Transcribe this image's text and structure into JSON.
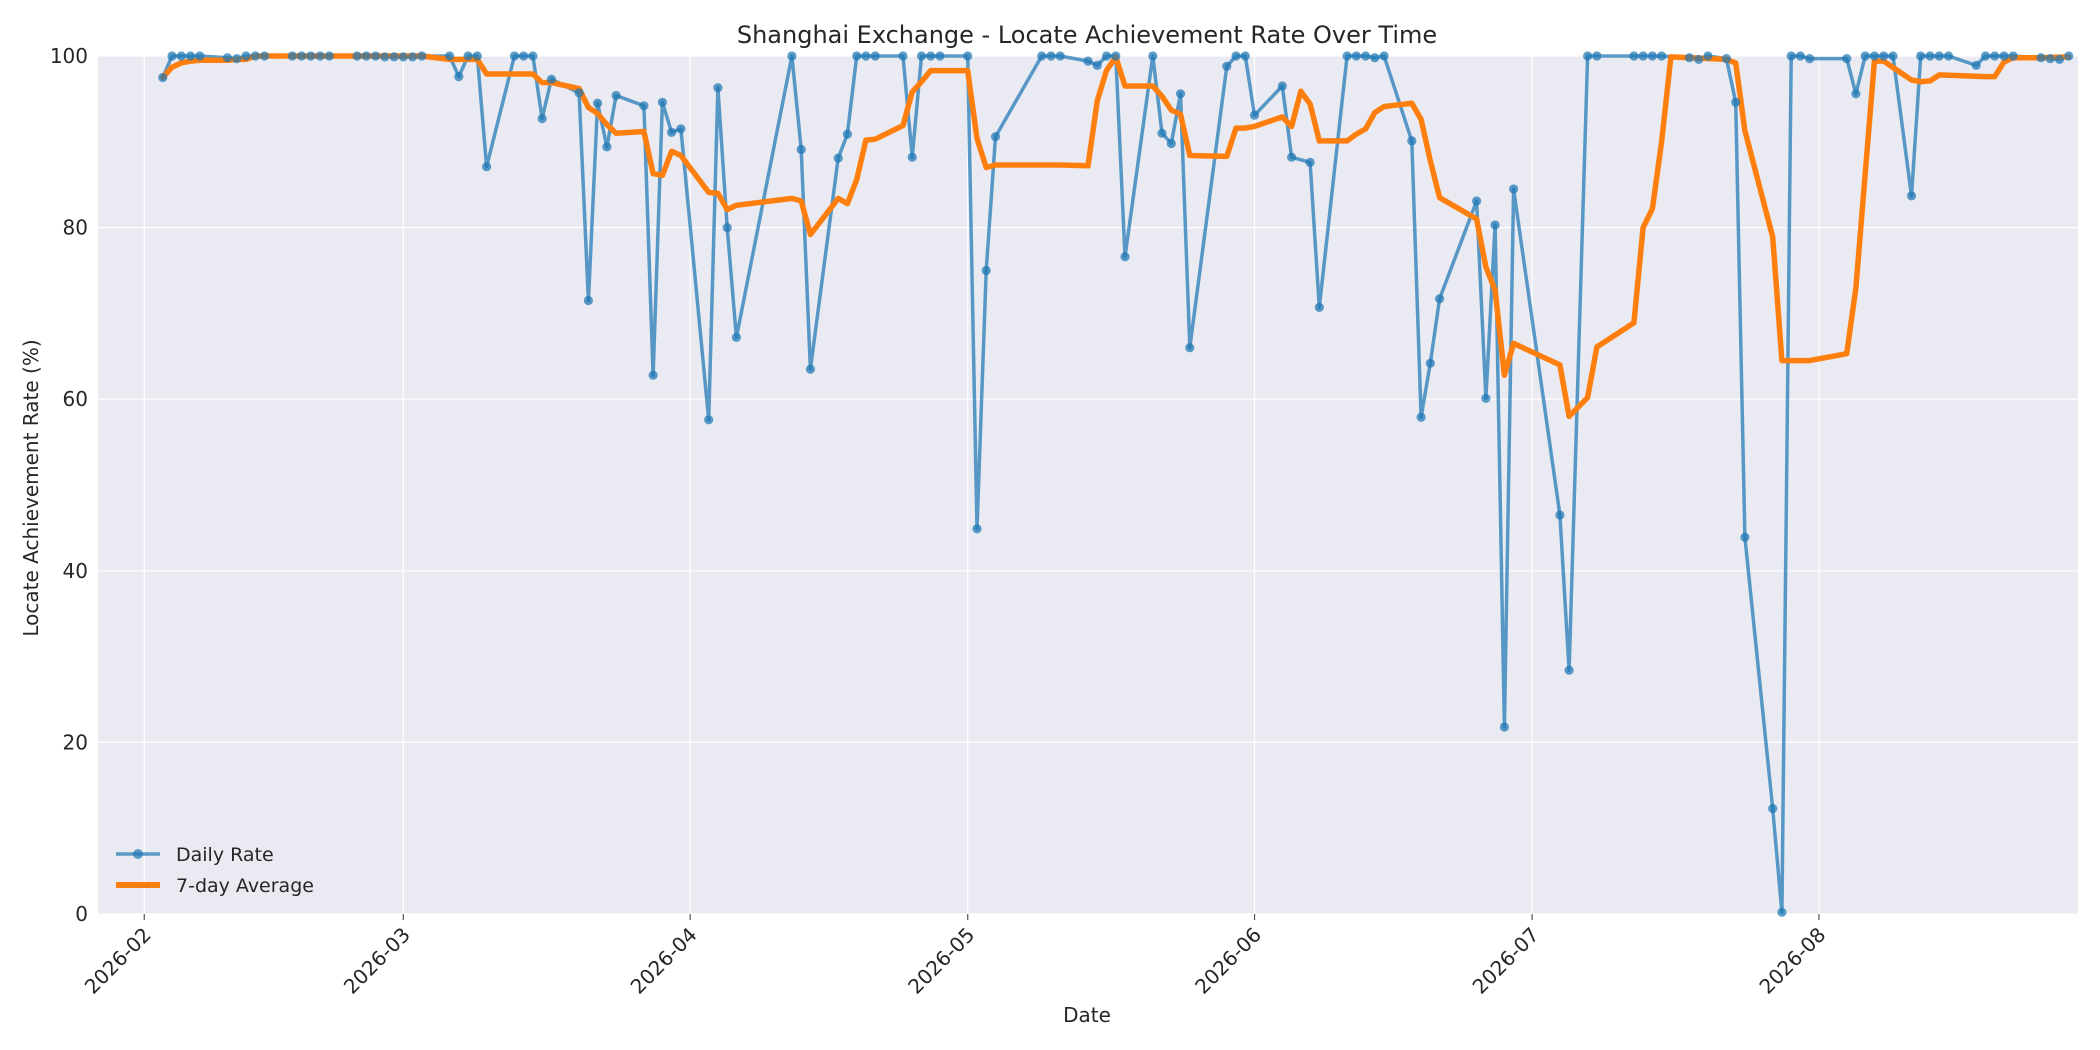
{
  "chart_data": {
    "type": "line",
    "title": "Shanghai Exchange - Locate Achievement Rate Over Time",
    "xlabel": "Date",
    "ylabel": "Locate Achievement Rate (%)",
    "ylim": [
      0,
      100
    ],
    "xlim": [
      "2026-01-27",
      "2026-08-29"
    ],
    "x_ticks": [
      "2026-02",
      "2026-03",
      "2026-04",
      "2026-05",
      "2026-06",
      "2026-07",
      "2026-08"
    ],
    "x_tick_dates": [
      "2026-02-01",
      "2026-03-01",
      "2026-04-01",
      "2026-05-01",
      "2026-06-01",
      "2026-07-01",
      "2026-08-01"
    ],
    "y_ticks": [
      0,
      20,
      40,
      60,
      80,
      100
    ],
    "grid": true,
    "legend_position": "lower-left",
    "colors": {
      "daily": "#1f77b4",
      "average": "#ff7f0e",
      "plot_bg": "#eaeaf2",
      "grid": "#ffffff"
    },
    "series": [
      {
        "name": "Daily Rate",
        "style": "line-with-markers",
        "points": [
          [
            "2026-02-03",
            97.5
          ],
          [
            "2026-02-04",
            100
          ],
          [
            "2026-02-05",
            100
          ],
          [
            "2026-02-06",
            100
          ],
          [
            "2026-02-07",
            100
          ],
          [
            "2026-02-10",
            99.8
          ],
          [
            "2026-02-11",
            99.7
          ],
          [
            "2026-02-12",
            100
          ],
          [
            "2026-02-13",
            100
          ],
          [
            "2026-02-14",
            100
          ],
          [
            "2026-02-17",
            100
          ],
          [
            "2026-02-18",
            100
          ],
          [
            "2026-02-19",
            100
          ],
          [
            "2026-02-20",
            100
          ],
          [
            "2026-02-21",
            100
          ],
          [
            "2026-02-24",
            100
          ],
          [
            "2026-02-25",
            100
          ],
          [
            "2026-02-26",
            100
          ],
          [
            "2026-02-27",
            99.9
          ],
          [
            "2026-02-28",
            99.9
          ],
          [
            "2026-03-01",
            99.9
          ],
          [
            "2026-03-02",
            99.9
          ],
          [
            "2026-03-03",
            100
          ],
          [
            "2026-03-06",
            100
          ],
          [
            "2026-03-07",
            97.6
          ],
          [
            "2026-03-08",
            100
          ],
          [
            "2026-03-09",
            100
          ],
          [
            "2026-03-10",
            87.1
          ],
          [
            "2026-03-13",
            100
          ],
          [
            "2026-03-14",
            100
          ],
          [
            "2026-03-15",
            100
          ],
          [
            "2026-03-16",
            92.7
          ],
          [
            "2026-03-17",
            97.3
          ],
          [
            "2026-03-20",
            95.7
          ],
          [
            "2026-03-21",
            71.5
          ],
          [
            "2026-03-22",
            94.5
          ],
          [
            "2026-03-23",
            89.4
          ],
          [
            "2026-03-24",
            95.4
          ],
          [
            "2026-03-27",
            94.2
          ],
          [
            "2026-03-28",
            62.8
          ],
          [
            "2026-03-29",
            94.6
          ],
          [
            "2026-03-30",
            91.1
          ],
          [
            "2026-03-31",
            91.5
          ],
          [
            "2026-04-03",
            57.6
          ],
          [
            "2026-04-04",
            96.3
          ],
          [
            "2026-04-05",
            80.0
          ],
          [
            "2026-04-06",
            67.2
          ],
          [
            "2026-04-12",
            100
          ],
          [
            "2026-04-13",
            89.1
          ],
          [
            "2026-04-14",
            63.5
          ],
          [
            "2026-04-17",
            88.1
          ],
          [
            "2026-04-18",
            90.9
          ],
          [
            "2026-04-19",
            100
          ],
          [
            "2026-04-20",
            100
          ],
          [
            "2026-04-21",
            100
          ],
          [
            "2026-04-24",
            100
          ],
          [
            "2026-04-25",
            88.2
          ],
          [
            "2026-04-26",
            100
          ],
          [
            "2026-04-27",
            100
          ],
          [
            "2026-04-28",
            100
          ],
          [
            "2026-05-01",
            100
          ],
          [
            "2026-05-02",
            44.9
          ],
          [
            "2026-05-03",
            75.0
          ],
          [
            "2026-05-04",
            90.6
          ],
          [
            "2026-05-09",
            100
          ],
          [
            "2026-05-10",
            100
          ],
          [
            "2026-05-11",
            100
          ],
          [
            "2026-05-14",
            99.4
          ],
          [
            "2026-05-15",
            98.9
          ],
          [
            "2026-05-16",
            100
          ],
          [
            "2026-05-17",
            100
          ],
          [
            "2026-05-18",
            76.6
          ],
          [
            "2026-05-21",
            100
          ],
          [
            "2026-05-22",
            91.0
          ],
          [
            "2026-05-23",
            89.8
          ],
          [
            "2026-05-24",
            95.6
          ],
          [
            "2026-05-25",
            66.0
          ],
          [
            "2026-05-29",
            98.8
          ],
          [
            "2026-05-30",
            100
          ],
          [
            "2026-05-31",
            100
          ],
          [
            "2026-06-01",
            93.1
          ],
          [
            "2026-06-04",
            96.5
          ],
          [
            "2026-06-05",
            88.2
          ],
          [
            "2026-06-07",
            87.6
          ],
          [
            "2026-06-08",
            70.7
          ],
          [
            "2026-06-11",
            100
          ],
          [
            "2026-06-12",
            100
          ],
          [
            "2026-06-13",
            100
          ],
          [
            "2026-06-14",
            99.8
          ],
          [
            "2026-06-15",
            100
          ],
          [
            "2026-06-18",
            90.1
          ],
          [
            "2026-06-19",
            57.9
          ],
          [
            "2026-06-20",
            64.2
          ],
          [
            "2026-06-21",
            71.7
          ],
          [
            "2026-06-25",
            83.1
          ],
          [
            "2026-06-26",
            60.1
          ],
          [
            "2026-06-27",
            80.3
          ],
          [
            "2026-06-28",
            21.8
          ],
          [
            "2026-06-29",
            84.5
          ],
          [
            "2026-07-04",
            46.5
          ],
          [
            "2026-07-05",
            28.4
          ],
          [
            "2026-07-07",
            100
          ],
          [
            "2026-07-08",
            100
          ],
          [
            "2026-07-12",
            100
          ],
          [
            "2026-07-13",
            100
          ],
          [
            "2026-07-14",
            100
          ],
          [
            "2026-07-15",
            100
          ],
          [
            "2026-07-18",
            99.8
          ],
          [
            "2026-07-19",
            99.6
          ],
          [
            "2026-07-20",
            100
          ],
          [
            "2026-07-22",
            99.7
          ],
          [
            "2026-07-23",
            94.6
          ],
          [
            "2026-07-24",
            43.9
          ],
          [
            "2026-07-27",
            12.3
          ],
          [
            "2026-07-28",
            0.2
          ],
          [
            "2026-07-29",
            100
          ],
          [
            "2026-07-30",
            100
          ],
          [
            "2026-07-31",
            99.7
          ],
          [
            "2026-08-04",
            99.7
          ],
          [
            "2026-08-05",
            95.6
          ],
          [
            "2026-08-06",
            100
          ],
          [
            "2026-08-07",
            100
          ],
          [
            "2026-08-08",
            100
          ],
          [
            "2026-08-09",
            100
          ],
          [
            "2026-08-11",
            83.7
          ],
          [
            "2026-08-12",
            100
          ],
          [
            "2026-08-13",
            100
          ],
          [
            "2026-08-14",
            100
          ],
          [
            "2026-08-15",
            100
          ],
          [
            "2026-08-18",
            98.9
          ],
          [
            "2026-08-19",
            100
          ],
          [
            "2026-08-20",
            100
          ],
          [
            "2026-08-21",
            100
          ],
          [
            "2026-08-22",
            100
          ],
          [
            "2026-08-25",
            99.8
          ],
          [
            "2026-08-26",
            99.7
          ],
          [
            "2026-08-27",
            99.6
          ],
          [
            "2026-08-28",
            100
          ]
        ]
      },
      {
        "name": "7-day Average",
        "style": "thick-line",
        "points": [
          [
            "2026-02-03",
            97.5
          ],
          [
            "2026-02-04",
            98.7
          ],
          [
            "2026-02-05",
            99.2
          ],
          [
            "2026-02-06",
            99.4
          ],
          [
            "2026-02-07",
            99.5
          ],
          [
            "2026-02-10",
            99.5
          ],
          [
            "2026-02-11",
            99.6
          ],
          [
            "2026-02-12",
            99.6
          ],
          [
            "2026-02-13",
            100
          ],
          [
            "2026-02-14",
            100
          ],
          [
            "2026-02-17",
            100
          ],
          [
            "2026-02-18",
            100
          ],
          [
            "2026-02-19",
            100
          ],
          [
            "2026-02-20",
            100
          ],
          [
            "2026-02-21",
            100
          ],
          [
            "2026-02-24",
            100
          ],
          [
            "2026-02-25",
            100
          ],
          [
            "2026-02-26",
            100
          ],
          [
            "2026-02-27",
            100
          ],
          [
            "2026-02-28",
            100
          ],
          [
            "2026-03-01",
            100
          ],
          [
            "2026-03-02",
            100
          ],
          [
            "2026-03-03",
            100
          ],
          [
            "2026-03-06",
            99.6
          ],
          [
            "2026-03-07",
            99.6
          ],
          [
            "2026-03-08",
            99.6
          ],
          [
            "2026-03-09",
            99.6
          ],
          [
            "2026-03-10",
            97.9
          ],
          [
            "2026-03-13",
            97.9
          ],
          [
            "2026-03-14",
            97.9
          ],
          [
            "2026-03-15",
            97.9
          ],
          [
            "2026-03-16",
            96.9
          ],
          [
            "2026-03-17",
            96.9
          ],
          [
            "2026-03-20",
            96.2
          ],
          [
            "2026-03-21",
            94.0
          ],
          [
            "2026-03-22",
            93.3
          ],
          [
            "2026-03-23",
            92.0
          ],
          [
            "2026-03-24",
            91.0
          ],
          [
            "2026-03-27",
            91.2
          ],
          [
            "2026-03-28",
            86.3
          ],
          [
            "2026-03-29",
            86.1
          ],
          [
            "2026-03-30",
            88.9
          ],
          [
            "2026-03-31",
            88.4
          ],
          [
            "2026-04-03",
            84.1
          ],
          [
            "2026-04-04",
            84.0
          ],
          [
            "2026-04-05",
            82.1
          ],
          [
            "2026-04-06",
            82.6
          ],
          [
            "2026-04-12",
            83.4
          ],
          [
            "2026-04-13",
            83.1
          ],
          [
            "2026-04-14",
            79.2
          ],
          [
            "2026-04-17",
            83.4
          ],
          [
            "2026-04-18",
            82.8
          ],
          [
            "2026-04-19",
            85.6
          ],
          [
            "2026-04-20",
            90.2
          ],
          [
            "2026-04-21",
            90.3
          ],
          [
            "2026-04-24",
            91.9
          ],
          [
            "2026-04-25",
            95.8
          ],
          [
            "2026-04-26",
            97.0
          ],
          [
            "2026-04-27",
            98.3
          ],
          [
            "2026-04-28",
            98.3
          ],
          [
            "2026-05-01",
            98.3
          ],
          [
            "2026-05-02",
            90.4
          ],
          [
            "2026-05-03",
            87.0
          ],
          [
            "2026-05-04",
            87.3
          ],
          [
            "2026-05-09",
            87.3
          ],
          [
            "2026-05-10",
            87.3
          ],
          [
            "2026-05-11",
            87.3
          ],
          [
            "2026-05-14",
            87.2
          ],
          [
            "2026-05-15",
            94.8
          ],
          [
            "2026-05-16",
            98.3
          ],
          [
            "2026-05-17",
            99.9
          ],
          [
            "2026-05-18",
            96.5
          ],
          [
            "2026-05-21",
            96.5
          ],
          [
            "2026-05-22",
            95.3
          ],
          [
            "2026-05-23",
            93.7
          ],
          [
            "2026-05-24",
            93.2
          ],
          [
            "2026-05-25",
            88.4
          ],
          [
            "2026-05-29",
            88.3
          ],
          [
            "2026-05-30",
            91.6
          ],
          [
            "2026-05-31",
            91.6
          ],
          [
            "2026-06-01",
            91.8
          ],
          [
            "2026-06-04",
            92.9
          ],
          [
            "2026-06-05",
            91.8
          ],
          [
            "2026-06-06",
            95.9
          ],
          [
            "2026-06-07",
            94.4
          ],
          [
            "2026-06-08",
            90.1
          ],
          [
            "2026-06-11",
            90.1
          ],
          [
            "2026-06-12",
            90.9
          ],
          [
            "2026-06-13",
            91.5
          ],
          [
            "2026-06-14",
            93.4
          ],
          [
            "2026-06-15",
            94.1
          ],
          [
            "2026-06-18",
            94.5
          ],
          [
            "2026-06-19",
            92.6
          ],
          [
            "2026-06-20",
            87.8
          ],
          [
            "2026-06-21",
            83.5
          ],
          [
            "2026-06-25",
            81.0
          ],
          [
            "2026-06-26",
            75.4
          ],
          [
            "2026-06-27",
            72.7
          ],
          [
            "2026-06-28",
            62.8
          ],
          [
            "2026-06-29",
            66.5
          ],
          [
            "2026-07-04",
            64.0
          ],
          [
            "2026-07-05",
            58.0
          ],
          [
            "2026-07-07",
            60.2
          ],
          [
            "2026-07-08",
            66.1
          ],
          [
            "2026-07-12",
            68.9
          ],
          [
            "2026-07-13",
            80.0
          ],
          [
            "2026-07-14",
            82.2
          ],
          [
            "2026-07-15",
            90.0
          ],
          [
            "2026-07-16",
            99.9
          ],
          [
            "2026-07-22",
            99.6
          ],
          [
            "2026-07-23",
            99.2
          ],
          [
            "2026-07-24",
            91.3
          ],
          [
            "2026-07-27",
            78.9
          ],
          [
            "2026-07-28",
            64.5
          ],
          [
            "2026-07-31",
            64.5
          ],
          [
            "2026-08-04",
            65.3
          ],
          [
            "2026-08-05",
            73.0
          ],
          [
            "2026-08-07",
            99.4
          ],
          [
            "2026-08-08",
            99.4
          ],
          [
            "2026-08-11",
            97.2
          ],
          [
            "2026-08-12",
            97.0
          ],
          [
            "2026-08-13",
            97.1
          ],
          [
            "2026-08-14",
            97.8
          ],
          [
            "2026-08-19",
            97.6
          ],
          [
            "2026-08-20",
            97.6
          ],
          [
            "2026-08-21",
            99.3
          ],
          [
            "2026-08-22",
            99.8
          ],
          [
            "2026-08-25",
            99.8
          ],
          [
            "2026-08-28",
            99.9
          ]
        ]
      }
    ]
  }
}
